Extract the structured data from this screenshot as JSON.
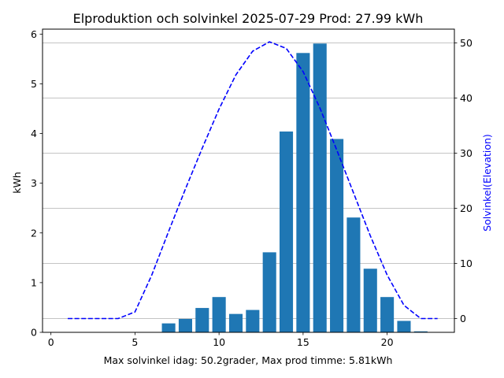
{
  "chart_data": {
    "type": "bar",
    "title": "Elproduktion och solvinkel 2025-07-29 Prod: 27.99 kWh",
    "xlabel": "Max solvinkel idag: 50.2grader, Max prod timme: 5.81kWh",
    "ylabel": "kWh",
    "ylabel_right": "Solvinkel(Elevation)",
    "xlim": [
      -0.5,
      24.0
    ],
    "ylim": [
      0,
      6.1
    ],
    "ylim_right": [
      -2.5,
      52.5
    ],
    "xticks": [
      0,
      5,
      10,
      15,
      20
    ],
    "yticks": [
      0,
      1,
      2,
      3,
      4,
      5,
      6
    ],
    "yticks_right": [
      0,
      10,
      20,
      30,
      40,
      50
    ],
    "grid_y_right": true,
    "bar_color": "#1f77b4",
    "line_color": "#0000ff",
    "right_label_color": "#0000ff",
    "bars": {
      "name": "",
      "x": [
        7,
        8,
        9,
        10,
        11,
        12,
        13,
        14,
        15,
        16,
        17,
        18,
        19,
        20,
        21,
        22
      ],
      "values": [
        0.18,
        0.27,
        0.49,
        0.71,
        0.37,
        0.45,
        1.61,
        4.04,
        5.62,
        5.81,
        3.89,
        2.31,
        1.28,
        0.71,
        0.23,
        0.02
      ]
    },
    "line": {
      "name": "",
      "x": [
        1,
        2,
        3,
        4,
        5,
        6,
        7,
        8,
        9,
        10,
        11,
        12,
        13,
        14,
        15,
        16,
        17,
        18,
        19,
        20,
        21,
        22,
        23
      ],
      "values": [
        0,
        0,
        0,
        0,
        1.2,
        7.9,
        15.8,
        23.5,
        30.9,
        38.0,
        44.2,
        48.5,
        50.2,
        49.0,
        44.8,
        38.2,
        30.6,
        22.8,
        15.0,
        7.9,
        2.4,
        0,
        0
      ]
    }
  }
}
